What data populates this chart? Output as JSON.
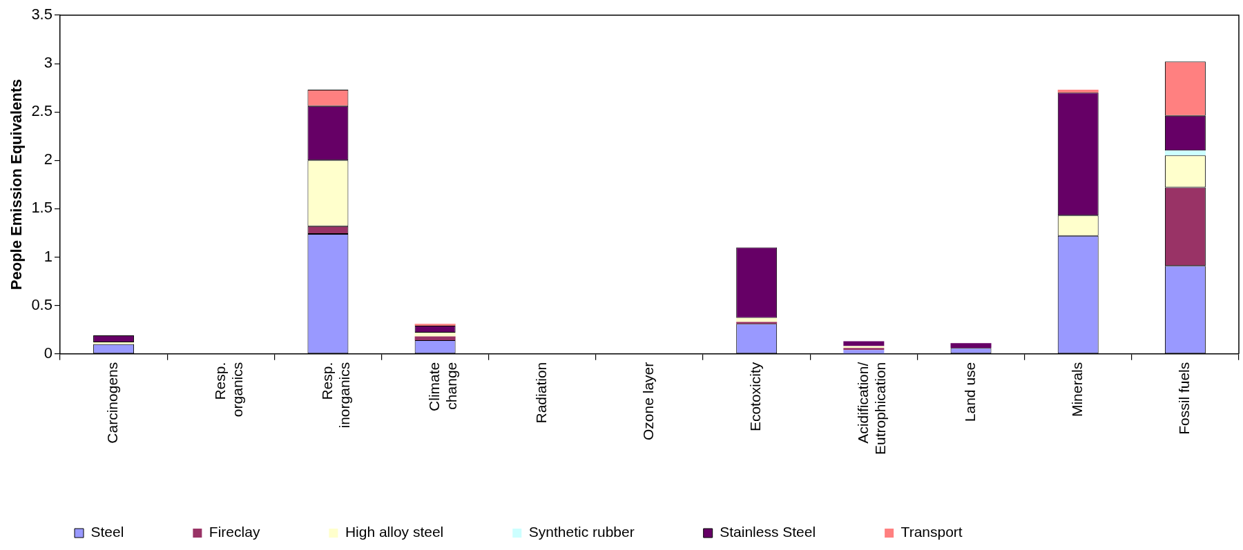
{
  "chart_data": {
    "type": "bar",
    "stacked": true,
    "ylabel": "People Emission Equivalents",
    "categories": [
      "Carcinogens",
      "Resp. organics",
      "Resp. inorganics",
      "Climate change",
      "Radiation",
      "Ozone layer",
      "Ecotoxicity",
      "Acidification/ Eutrophication",
      "Land use",
      "Minerals",
      "Fossil fuels"
    ],
    "series": [
      {
        "name": "Steel",
        "color": "#9999ff",
        "values": [
          0.1,
          null,
          1.24,
          0.14,
          null,
          null,
          0.31,
          0.04,
          0.06,
          1.22,
          0.91
        ]
      },
      {
        "name": "Fireclay",
        "color": "#993366",
        "values": [
          null,
          null,
          0.08,
          0.04,
          null,
          null,
          0.02,
          0.02,
          null,
          null,
          0.81
        ]
      },
      {
        "name": "High alloy steel",
        "color": "#ffffcc",
        "values": [
          0.02,
          null,
          0.68,
          0.04,
          null,
          null,
          0.04,
          0.02,
          null,
          0.21,
          0.33
        ]
      },
      {
        "name": "Synthetic rubber",
        "color": "#ccffff",
        "values": [
          null,
          null,
          null,
          null,
          null,
          null,
          null,
          null,
          null,
          null,
          0.05
        ]
      },
      {
        "name": "Stainless Steel",
        "color": "#660066",
        "values": [
          0.07,
          null,
          0.56,
          0.07,
          null,
          null,
          0.73,
          0.05,
          0.05,
          1.27,
          0.36
        ]
      },
      {
        "name": "Transport",
        "color": "#ff8080",
        "values": [
          null,
          null,
          0.17,
          0.02,
          null,
          null,
          null,
          null,
          null,
          0.03,
          0.56
        ]
      }
    ],
    "ylim": [
      0,
      3.5
    ],
    "yticks": [
      0,
      0.5,
      1,
      1.5,
      2,
      2.5,
      3,
      3.5
    ],
    "grid": false,
    "legend": "bottom"
  }
}
